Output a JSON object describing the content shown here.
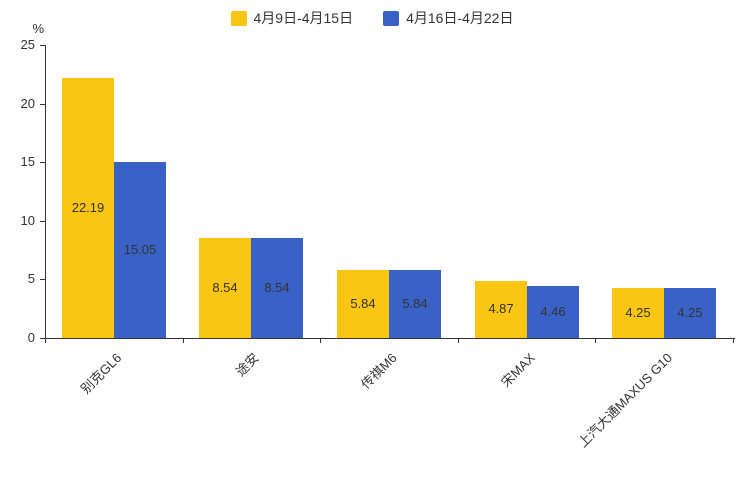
{
  "chart_data": {
    "type": "bar",
    "categories": [
      "别克GL6",
      "途安",
      "传祺M6",
      "宋MAX",
      "上汽大通MAXUS G10"
    ],
    "series": [
      {
        "name": "4月9日-4月15日",
        "color": "#FBC514",
        "values": [
          22.19,
          8.54,
          5.84,
          4.87,
          4.25
        ]
      },
      {
        "name": "4月16日-4月22日",
        "color": "#3A62C6",
        "values": [
          15.05,
          8.54,
          5.84,
          4.46,
          4.25
        ]
      }
    ],
    "title": "",
    "xlabel": "",
    "ylabel": "%",
    "ylim": [
      0,
      25
    ],
    "yticks": [
      0,
      5,
      10,
      15,
      20,
      25
    ],
    "legend_position": "top",
    "grid": false,
    "label_color": "#333333",
    "axis_color": "#333333"
  }
}
